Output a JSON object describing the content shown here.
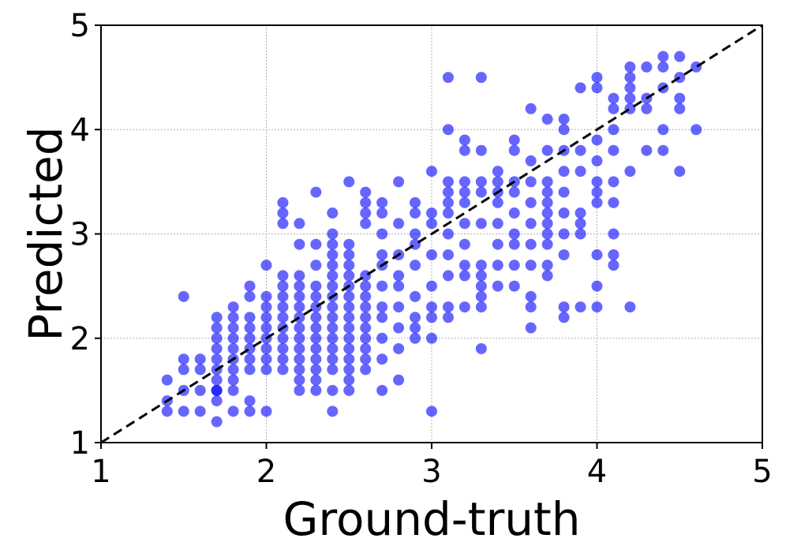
{
  "chart_data": {
    "type": "scatter",
    "title": "",
    "xlabel": "Ground-truth",
    "ylabel": "Predicted",
    "xlim": [
      1,
      5
    ],
    "ylim": [
      1,
      5
    ],
    "xticks": [
      "1",
      "2",
      "3",
      "4",
      "5"
    ],
    "yticks": [
      "1",
      "2",
      "3",
      "4",
      "5"
    ],
    "grid": true,
    "reference_line": {
      "style": "dashed",
      "color": "#000000",
      "from": [
        1,
        1
      ],
      "to": [
        5,
        5
      ]
    },
    "marker_color": "#0000ff",
    "marker_opacity": 0.6,
    "points": [
      [
        1.4,
        1.6
      ],
      [
        1.4,
        1.4
      ],
      [
        1.4,
        1.3
      ],
      [
        1.5,
        2.4
      ],
      [
        1.5,
        1.8
      ],
      [
        1.5,
        1.7
      ],
      [
        1.5,
        1.5
      ],
      [
        1.5,
        1.3
      ],
      [
        1.6,
        1.8
      ],
      [
        1.6,
        1.7
      ],
      [
        1.6,
        1.5
      ],
      [
        1.6,
        1.3
      ],
      [
        1.7,
        2.2
      ],
      [
        1.7,
        2.1
      ],
      [
        1.7,
        2.0
      ],
      [
        1.7,
        1.9
      ],
      [
        1.7,
        1.8
      ],
      [
        1.7,
        1.7
      ],
      [
        1.7,
        1.6
      ],
      [
        1.7,
        1.5
      ],
      [
        1.7,
        1.5
      ],
      [
        1.7,
        1.4
      ],
      [
        1.7,
        1.2
      ],
      [
        1.8,
        2.3
      ],
      [
        1.8,
        2.2
      ],
      [
        1.8,
        2.1
      ],
      [
        1.8,
        2.0
      ],
      [
        1.8,
        1.9
      ],
      [
        1.8,
        1.8
      ],
      [
        1.8,
        1.7
      ],
      [
        1.8,
        1.6
      ],
      [
        1.8,
        1.5
      ],
      [
        1.8,
        1.3
      ],
      [
        1.9,
        2.5
      ],
      [
        1.9,
        2.4
      ],
      [
        1.9,
        2.2
      ],
      [
        1.9,
        2.1
      ],
      [
        1.9,
        2.0
      ],
      [
        1.9,
        1.9
      ],
      [
        1.9,
        1.8
      ],
      [
        1.9,
        1.7
      ],
      [
        1.9,
        1.4
      ],
      [
        1.9,
        1.3
      ],
      [
        2.0,
        2.7
      ],
      [
        2.0,
        2.4
      ],
      [
        2.0,
        2.3
      ],
      [
        2.0,
        2.2
      ],
      [
        2.0,
        2.1
      ],
      [
        2.0,
        2.0
      ],
      [
        2.0,
        1.9
      ],
      [
        2.0,
        1.8
      ],
      [
        2.0,
        1.7
      ],
      [
        2.0,
        1.3
      ],
      [
        2.1,
        2.6
      ],
      [
        2.1,
        2.5
      ],
      [
        2.1,
        2.4
      ],
      [
        2.1,
        2.3
      ],
      [
        2.1,
        2.2
      ],
      [
        2.1,
        2.1
      ],
      [
        2.1,
        2.0
      ],
      [
        2.1,
        1.9
      ],
      [
        2.1,
        1.8
      ],
      [
        2.1,
        1.7
      ],
      [
        2.1,
        3.3
      ],
      [
        2.1,
        3.2
      ],
      [
        2.1,
        3.1
      ],
      [
        2.2,
        2.5
      ],
      [
        2.2,
        2.4
      ],
      [
        2.2,
        2.3
      ],
      [
        2.2,
        2.2
      ],
      [
        2.2,
        2.1
      ],
      [
        2.2,
        2.0
      ],
      [
        2.2,
        1.9
      ],
      [
        2.2,
        1.8
      ],
      [
        2.2,
        1.7
      ],
      [
        2.2,
        1.6
      ],
      [
        2.2,
        1.5
      ],
      [
        2.2,
        3.1
      ],
      [
        2.2,
        2.9
      ],
      [
        2.2,
        2.6
      ],
      [
        2.3,
        3.4
      ],
      [
        2.3,
        2.9
      ],
      [
        2.3,
        2.7
      ],
      [
        2.3,
        2.5
      ],
      [
        2.3,
        2.4
      ],
      [
        2.3,
        2.3
      ],
      [
        2.3,
        2.2
      ],
      [
        2.3,
        2.1
      ],
      [
        2.3,
        2.0
      ],
      [
        2.3,
        1.9
      ],
      [
        2.3,
        1.8
      ],
      [
        2.3,
        1.7
      ],
      [
        2.3,
        1.6
      ],
      [
        2.3,
        1.5
      ],
      [
        2.4,
        3.2
      ],
      [
        2.4,
        3.0
      ],
      [
        2.4,
        2.9
      ],
      [
        2.4,
        2.8
      ],
      [
        2.4,
        2.7
      ],
      [
        2.4,
        2.6
      ],
      [
        2.4,
        2.5
      ],
      [
        2.4,
        2.4
      ],
      [
        2.4,
        2.3
      ],
      [
        2.4,
        2.2
      ],
      [
        2.4,
        2.1
      ],
      [
        2.4,
        2.0
      ],
      [
        2.4,
        1.9
      ],
      [
        2.4,
        1.8
      ],
      [
        2.4,
        1.7
      ],
      [
        2.4,
        1.5
      ],
      [
        2.4,
        1.3
      ],
      [
        2.5,
        3.5
      ],
      [
        2.5,
        2.9
      ],
      [
        2.5,
        2.8
      ],
      [
        2.5,
        2.7
      ],
      [
        2.5,
        2.6
      ],
      [
        2.5,
        2.5
      ],
      [
        2.5,
        2.4
      ],
      [
        2.5,
        2.3
      ],
      [
        2.5,
        2.2
      ],
      [
        2.5,
        2.1
      ],
      [
        2.5,
        2.0
      ],
      [
        2.5,
        1.9
      ],
      [
        2.5,
        1.8
      ],
      [
        2.5,
        1.7
      ],
      [
        2.5,
        1.6
      ],
      [
        2.5,
        1.5
      ],
      [
        2.6,
        3.4
      ],
      [
        2.6,
        3.3
      ],
      [
        2.6,
        3.2
      ],
      [
        2.6,
        3.1
      ],
      [
        2.6,
        2.6
      ],
      [
        2.6,
        2.5
      ],
      [
        2.6,
        2.4
      ],
      [
        2.6,
        2.3
      ],
      [
        2.6,
        2.2
      ],
      [
        2.6,
        2.1
      ],
      [
        2.6,
        2.0
      ],
      [
        2.6,
        1.9
      ],
      [
        2.6,
        1.8
      ],
      [
        2.6,
        1.7
      ],
      [
        2.7,
        3.3
      ],
      [
        2.7,
        3.2
      ],
      [
        2.7,
        3.0
      ],
      [
        2.7,
        2.8
      ],
      [
        2.7,
        2.7
      ],
      [
        2.7,
        2.5
      ],
      [
        2.7,
        2.3
      ],
      [
        2.7,
        2.2
      ],
      [
        2.7,
        2.0
      ],
      [
        2.7,
        1.8
      ],
      [
        2.7,
        1.5
      ],
      [
        2.8,
        3.5
      ],
      [
        2.8,
        3.1
      ],
      [
        2.8,
        2.8
      ],
      [
        2.8,
        2.6
      ],
      [
        2.8,
        2.5
      ],
      [
        2.8,
        2.3
      ],
      [
        2.8,
        2.1
      ],
      [
        2.8,
        1.9
      ],
      [
        2.8,
        1.6
      ],
      [
        2.9,
        3.3
      ],
      [
        2.9,
        3.2
      ],
      [
        2.9,
        3.0
      ],
      [
        2.9,
        2.9
      ],
      [
        2.9,
        2.7
      ],
      [
        2.9,
        2.4
      ],
      [
        2.9,
        2.2
      ],
      [
        2.9,
        2.1
      ],
      [
        2.9,
        2.0
      ],
      [
        3.0,
        3.6
      ],
      [
        3.0,
        3.2
      ],
      [
        3.0,
        3.1
      ],
      [
        3.0,
        2.8
      ],
      [
        3.0,
        2.5
      ],
      [
        3.0,
        2.3
      ],
      [
        3.0,
        2.2
      ],
      [
        3.0,
        2.0
      ],
      [
        3.0,
        1.3
      ],
      [
        3.1,
        4.5
      ],
      [
        3.1,
        4.0
      ],
      [
        3.1,
        3.5
      ],
      [
        3.1,
        3.4
      ],
      [
        3.1,
        3.3
      ],
      [
        3.1,
        3.2
      ],
      [
        3.1,
        3.0
      ],
      [
        3.1,
        2.8
      ],
      [
        3.1,
        2.6
      ],
      [
        3.1,
        2.3
      ],
      [
        3.1,
        2.2
      ],
      [
        3.2,
        3.9
      ],
      [
        3.2,
        3.8
      ],
      [
        3.2,
        3.5
      ],
      [
        3.2,
        3.4
      ],
      [
        3.2,
        3.3
      ],
      [
        3.2,
        3.1
      ],
      [
        3.2,
        2.9
      ],
      [
        3.2,
        2.7
      ],
      [
        3.2,
        2.6
      ],
      [
        3.2,
        2.3
      ],
      [
        3.3,
        4.5
      ],
      [
        3.3,
        3.8
      ],
      [
        3.3,
        3.5
      ],
      [
        3.3,
        3.4
      ],
      [
        3.3,
        3.1
      ],
      [
        3.3,
        2.7
      ],
      [
        3.3,
        2.6
      ],
      [
        3.3,
        2.5
      ],
      [
        3.3,
        2.4
      ],
      [
        3.3,
        2.3
      ],
      [
        3.3,
        1.9
      ],
      [
        3.4,
        3.6
      ],
      [
        3.4,
        3.5
      ],
      [
        3.4,
        3.4
      ],
      [
        3.4,
        3.3
      ],
      [
        3.4,
        3.1
      ],
      [
        3.4,
        2.9
      ],
      [
        3.4,
        2.7
      ],
      [
        3.4,
        2.5
      ],
      [
        3.5,
        3.9
      ],
      [
        3.5,
        3.8
      ],
      [
        3.5,
        3.5
      ],
      [
        3.5,
        3.4
      ],
      [
        3.5,
        3.2
      ],
      [
        3.5,
        3.0
      ],
      [
        3.5,
        2.9
      ],
      [
        3.5,
        2.7
      ],
      [
        3.5,
        2.5
      ],
      [
        3.6,
        4.2
      ],
      [
        3.6,
        3.7
      ],
      [
        3.6,
        3.5
      ],
      [
        3.6,
        3.3
      ],
      [
        3.6,
        3.1
      ],
      [
        3.6,
        2.9
      ],
      [
        3.6,
        2.7
      ],
      [
        3.6,
        2.4
      ],
      [
        3.6,
        2.3
      ],
      [
        3.6,
        2.1
      ],
      [
        3.7,
        4.1
      ],
      [
        3.7,
        3.8
      ],
      [
        3.7,
        3.5
      ],
      [
        3.7,
        3.4
      ],
      [
        3.7,
        3.3
      ],
      [
        3.7,
        3.2
      ],
      [
        3.7,
        3.1
      ],
      [
        3.7,
        3.0
      ],
      [
        3.7,
        2.9
      ],
      [
        3.7,
        2.7
      ],
      [
        3.7,
        2.6
      ],
      [
        3.8,
        4.1
      ],
      [
        3.8,
        4.0
      ],
      [
        3.8,
        3.8
      ],
      [
        3.8,
        3.6
      ],
      [
        3.8,
        3.4
      ],
      [
        3.8,
        3.2
      ],
      [
        3.8,
        3.0
      ],
      [
        3.8,
        2.8
      ],
      [
        3.8,
        2.3
      ],
      [
        3.8,
        2.2
      ],
      [
        3.9,
        4.4
      ],
      [
        3.9,
        3.8
      ],
      [
        3.9,
        3.6
      ],
      [
        3.9,
        3.2
      ],
      [
        3.9,
        3.1
      ],
      [
        3.9,
        3.0
      ],
      [
        3.9,
        2.3
      ],
      [
        4.0,
        4.5
      ],
      [
        4.0,
        4.4
      ],
      [
        4.0,
        3.9
      ],
      [
        4.0,
        3.7
      ],
      [
        4.0,
        3.5
      ],
      [
        4.0,
        3.4
      ],
      [
        4.0,
        3.3
      ],
      [
        4.0,
        2.8
      ],
      [
        4.0,
        2.5
      ],
      [
        4.0,
        2.3
      ],
      [
        4.1,
        4.3
      ],
      [
        4.1,
        4.2
      ],
      [
        4.1,
        4.0
      ],
      [
        4.1,
        3.8
      ],
      [
        4.1,
        3.5
      ],
      [
        4.1,
        3.3
      ],
      [
        4.1,
        3.0
      ],
      [
        4.1,
        2.8
      ],
      [
        4.1,
        2.7
      ],
      [
        4.2,
        4.6
      ],
      [
        4.2,
        4.5
      ],
      [
        4.2,
        4.4
      ],
      [
        4.2,
        4.3
      ],
      [
        4.2,
        4.2
      ],
      [
        4.2,
        3.6
      ],
      [
        4.2,
        2.3
      ],
      [
        4.3,
        4.6
      ],
      [
        4.3,
        4.3
      ],
      [
        4.3,
        4.2
      ],
      [
        4.3,
        3.8
      ],
      [
        4.4,
        4.7
      ],
      [
        4.4,
        4.6
      ],
      [
        4.4,
        4.4
      ],
      [
        4.4,
        4.0
      ],
      [
        4.4,
        3.8
      ],
      [
        4.5,
        4.7
      ],
      [
        4.5,
        4.5
      ],
      [
        4.5,
        4.3
      ],
      [
        4.5,
        4.2
      ],
      [
        4.5,
        3.6
      ],
      [
        4.6,
        4.6
      ],
      [
        4.6,
        4.0
      ]
    ]
  }
}
